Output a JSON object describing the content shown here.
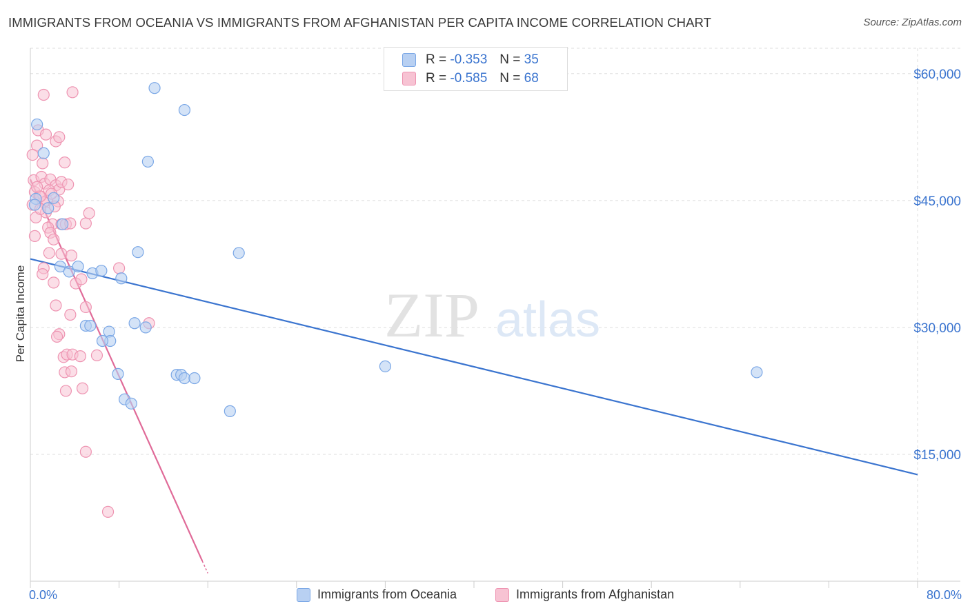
{
  "header": {
    "title": "IMMIGRANTS FROM OCEANIA VS IMMIGRANTS FROM AFGHANISTAN PER CAPITA INCOME CORRELATION CHART",
    "source": "Source: ZipAtlas.com"
  },
  "watermark": {
    "zip": "ZIP",
    "atlas": "atlas"
  },
  "stats": {
    "oceania": {
      "r_label": "R =",
      "r_value": "-0.353",
      "n_label": "N =",
      "n_value": "35"
    },
    "afghanistan": {
      "r_label": "R =",
      "r_value": "-0.585",
      "n_label": "N =",
      "n_value": "68"
    }
  },
  "colors": {
    "oceania_fill": "#b8d0f2",
    "oceania_stroke": "#7aa7e6",
    "oceania_line": "#3a74cf",
    "afghanistan_fill": "#f7c3d3",
    "afghanistan_stroke": "#ee93b1",
    "afghanistan_line": "#e06a98",
    "axis_text": "#3a74cf",
    "grid": "#dddddd"
  },
  "chart_data": {
    "type": "scatter",
    "title": "IMMIGRANTS FROM OCEANIA VS IMMIGRANTS FROM AFGHANISTAN PER CAPITA INCOME CORRELATION CHART",
    "xlabel": "",
    "ylabel": "Per Capita Income",
    "xlim": [
      0,
      80
    ],
    "ylim": [
      0,
      63000
    ],
    "x_tick_labels": [
      "0.0%",
      "80.0%"
    ],
    "y_ticks": [
      15000,
      30000,
      45000,
      60000
    ],
    "y_tick_labels": [
      "$15,000",
      "$30,000",
      "$45,000",
      "$60,000"
    ],
    "legend_position": "bottom",
    "series": [
      {
        "name": "Immigrants from Oceania",
        "points": [
          [
            0.6,
            54000
          ],
          [
            1.2,
            50600
          ],
          [
            0.5,
            45200
          ],
          [
            0.4,
            44500
          ],
          [
            1.6,
            44100
          ],
          [
            2.1,
            45300
          ],
          [
            2.9,
            42200
          ],
          [
            2.7,
            37200
          ],
          [
            3.5,
            36600
          ],
          [
            4.3,
            37200
          ],
          [
            5.6,
            36400
          ],
          [
            6.4,
            36700
          ],
          [
            8.2,
            35800
          ],
          [
            9.7,
            38900
          ],
          [
            11.2,
            58300
          ],
          [
            13.9,
            55700
          ],
          [
            10.6,
            49600
          ],
          [
            18.8,
            38800
          ],
          [
            5.0,
            30200
          ],
          [
            5.4,
            30200
          ],
          [
            7.1,
            29500
          ],
          [
            7.2,
            28400
          ],
          [
            6.5,
            28400
          ],
          [
            9.4,
            30500
          ],
          [
            10.4,
            30000
          ],
          [
            7.9,
            24500
          ],
          [
            13.2,
            24400
          ],
          [
            13.6,
            24400
          ],
          [
            13.9,
            24000
          ],
          [
            14.8,
            24000
          ],
          [
            8.5,
            21500
          ],
          [
            9.1,
            21000
          ],
          [
            18.0,
            20100
          ],
          [
            32.0,
            25400
          ],
          [
            65.5,
            24700
          ]
        ],
        "trend": {
          "x": [
            0,
            80
          ],
          "y": [
            38100,
            12600
          ]
        }
      },
      {
        "name": "Immigrants from Afghanistan",
        "points": [
          [
            1.2,
            57500
          ],
          [
            3.8,
            57800
          ],
          [
            0.7,
            53300
          ],
          [
            1.4,
            52800
          ],
          [
            2.3,
            52000
          ],
          [
            2.6,
            52500
          ],
          [
            0.6,
            51500
          ],
          [
            0.2,
            50400
          ],
          [
            1.1,
            49400
          ],
          [
            3.1,
            49500
          ],
          [
            0.3,
            47400
          ],
          [
            1.0,
            47800
          ],
          [
            1.3,
            47000
          ],
          [
            1.8,
            47500
          ],
          [
            2.3,
            46800
          ],
          [
            2.6,
            46300
          ],
          [
            2.8,
            47200
          ],
          [
            0.4,
            46000
          ],
          [
            0.8,
            45500
          ],
          [
            1.5,
            45000
          ],
          [
            1.2,
            44800
          ],
          [
            0.2,
            44500
          ],
          [
            0.5,
            43000
          ],
          [
            2.0,
            42200
          ],
          [
            2.8,
            42200
          ],
          [
            3.2,
            42200
          ],
          [
            3.6,
            42300
          ],
          [
            1.6,
            41800
          ],
          [
            1.8,
            41200
          ],
          [
            0.4,
            40800
          ],
          [
            2.1,
            40400
          ],
          [
            5.0,
            42300
          ],
          [
            5.3,
            43500
          ],
          [
            1.7,
            38800
          ],
          [
            2.8,
            38700
          ],
          [
            3.7,
            38500
          ],
          [
            1.2,
            37000
          ],
          [
            1.1,
            36300
          ],
          [
            2.1,
            35300
          ],
          [
            4.1,
            35200
          ],
          [
            4.6,
            35700
          ],
          [
            8.0,
            37000
          ],
          [
            5.0,
            32400
          ],
          [
            2.3,
            32600
          ],
          [
            3.6,
            31500
          ],
          [
            10.7,
            30500
          ],
          [
            2.6,
            29200
          ],
          [
            2.4,
            28900
          ],
          [
            3.0,
            26500
          ],
          [
            3.3,
            26800
          ],
          [
            3.8,
            26800
          ],
          [
            4.5,
            26600
          ],
          [
            6.0,
            26700
          ],
          [
            3.1,
            24700
          ],
          [
            3.7,
            24800
          ],
          [
            4.7,
            22800
          ],
          [
            3.2,
            22500
          ],
          [
            5.0,
            15300
          ],
          [
            7.0,
            8200
          ],
          [
            0.9,
            45500
          ],
          [
            1.7,
            46200
          ],
          [
            2.5,
            44900
          ],
          [
            0.6,
            46600
          ],
          [
            3.4,
            46900
          ],
          [
            1.9,
            45800
          ],
          [
            2.2,
            44300
          ],
          [
            1.4,
            43600
          ],
          [
            0.9,
            44000
          ]
        ],
        "trend": {
          "x": [
            0,
            15.5
          ],
          "y": [
            47500,
            2400
          ]
        }
      }
    ]
  },
  "legend": {
    "oceania_label": "Immigrants from Oceania",
    "afghanistan_label": "Immigrants from Afghanistan"
  },
  "x_axis": {
    "min_label": "0.0%",
    "max_label": "80.0%"
  }
}
